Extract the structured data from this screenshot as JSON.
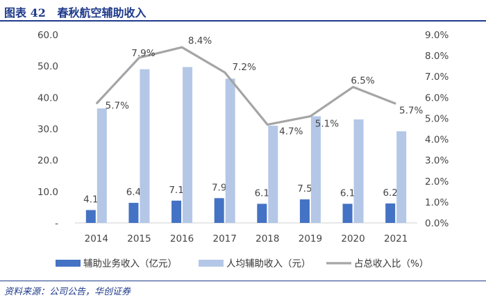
{
  "header": {
    "title": "图表 42   春秋航空辅助收入"
  },
  "footer": {
    "source": "资料来源：公司公告，华创证券"
  },
  "colors": {
    "bar1": "#4472c4",
    "bar2": "#b4c7e7",
    "line": "#a5a5a5",
    "accent": "#1f3a8a"
  },
  "chart_data": {
    "type": "bar",
    "categories": [
      "2014",
      "2015",
      "2016",
      "2017",
      "2018",
      "2019",
      "2020",
      "2021"
    ],
    "series": [
      {
        "name": "辅助业务收入（亿元）",
        "type": "bar",
        "axis": "left",
        "values": [
          4.1,
          6.4,
          7.1,
          7.9,
          6.1,
          7.5,
          6.1,
          6.2
        ],
        "labels": [
          "4.1",
          "6.4",
          "7.1",
          "7.9",
          "6.1",
          "7.5",
          "6.1",
          "6.2"
        ]
      },
      {
        "name": "人均辅助收入（元）",
        "type": "bar",
        "axis": "left",
        "values": [
          36.5,
          49.0,
          49.7,
          46.0,
          31.0,
          34.0,
          33.0,
          29.2
        ]
      },
      {
        "name": "占总收入比（%）",
        "type": "line",
        "axis": "right",
        "values": [
          5.7,
          7.9,
          8.4,
          7.2,
          4.7,
          5.1,
          6.5,
          5.7
        ],
        "labels": [
          "5.7%",
          "7.9%",
          "8.4%",
          "7.2%",
          "4.7%",
          "5.1%",
          "6.5%",
          "5.7%"
        ]
      }
    ],
    "left_axis": {
      "min": 0,
      "max": 60,
      "ticks": [
        "-",
        "10.0",
        "20.0",
        "30.0",
        "40.0",
        "50.0",
        "60.0"
      ]
    },
    "right_axis": {
      "min": 0,
      "max": 9,
      "ticks": [
        "0.0%",
        "1.0%",
        "2.0%",
        "3.0%",
        "4.0%",
        "5.0%",
        "6.0%",
        "7.0%",
        "8.0%",
        "9.0%"
      ]
    },
    "legend_position": "bottom",
    "grid": false
  }
}
